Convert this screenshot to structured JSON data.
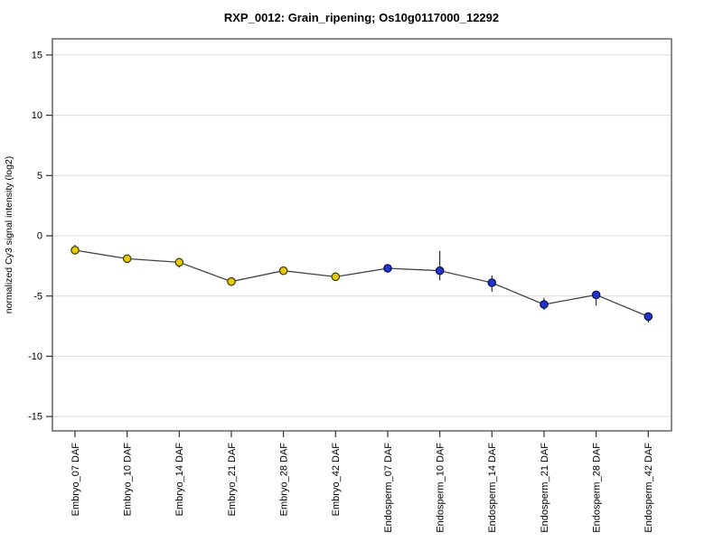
{
  "chart_data": {
    "type": "line",
    "title": "RXP_0012: Grain_ripening; Os10g0117000_12292",
    "xlabel": "",
    "ylabel": "normalized Cy3 signal intensity (log2)",
    "ylim": [
      -16.5,
      16.5
    ],
    "yticks": [
      15,
      10,
      5,
      0,
      -5,
      -10,
      -15
    ],
    "grid": true,
    "legend_position": "none",
    "categories": [
      "Embryo_07 DAF",
      "Embryo_10 DAF",
      "Embryo_14 DAF",
      "Embryo_21 DAF",
      "Embryo_28 DAF",
      "Embryo_42 DAF",
      "Endosperm_07 DAF",
      "Endosperm_10 DAF",
      "Endosperm_14 DAF",
      "Endosperm_21 DAF",
      "Endosperm_28 DAF",
      "Endosperm_42 DAF"
    ],
    "points": [
      {
        "label": "Embryo_07 DAF",
        "group": "Embryo",
        "value": -1.2,
        "err_up": 0.45,
        "err_down": 0.3
      },
      {
        "label": "Embryo_10 DAF",
        "group": "Embryo",
        "value": -1.9,
        "err_up": 0.25,
        "err_down": 0.25
      },
      {
        "label": "Embryo_14 DAF",
        "group": "Embryo",
        "value": -2.2,
        "err_up": 0.2,
        "err_down": 0.45
      },
      {
        "label": "Embryo_21 DAF",
        "group": "Embryo",
        "value": -3.8,
        "err_up": 0.15,
        "err_down": 0.15
      },
      {
        "label": "Embryo_28 DAF",
        "group": "Embryo",
        "value": -2.9,
        "err_up": 0.2,
        "err_down": 0.2
      },
      {
        "label": "Embryo_42 DAF",
        "group": "Embryo",
        "value": -3.4,
        "err_up": 0.3,
        "err_down": 0.3
      },
      {
        "label": "Endosperm_07 DAF",
        "group": "Endosperm",
        "value": -2.7,
        "err_up": 0.2,
        "err_down": 0.2
      },
      {
        "label": "Endosperm_10 DAF",
        "group": "Endosperm",
        "value": -2.9,
        "err_up": 1.65,
        "err_down": 0.8
      },
      {
        "label": "Endosperm_14 DAF",
        "group": "Endosperm",
        "value": -3.9,
        "err_up": 0.6,
        "err_down": 0.75
      },
      {
        "label": "Endosperm_21 DAF",
        "group": "Endosperm",
        "value": -5.7,
        "err_up": 0.55,
        "err_down": 0.45
      },
      {
        "label": "Endosperm_28 DAF",
        "group": "Endosperm",
        "value": -4.9,
        "err_up": 0.2,
        "err_down": 0.9
      },
      {
        "label": "Endosperm_42 DAF",
        "group": "Endosperm",
        "value": -6.7,
        "err_up": 0.15,
        "err_down": 0.5
      }
    ],
    "groups": {
      "Embryo": {
        "marker_color": "#E8C800",
        "marker_border": "#3A3A00"
      },
      "Endosperm": {
        "marker_color": "#2136C9",
        "marker_border": "#0B0B55"
      }
    },
    "colors": {
      "line": "#444444",
      "error_bar": "#1A1A1A",
      "grid": "#DADADA",
      "box_border": "#4D4D4D",
      "tick": "#333333",
      "text": "#000000"
    }
  }
}
